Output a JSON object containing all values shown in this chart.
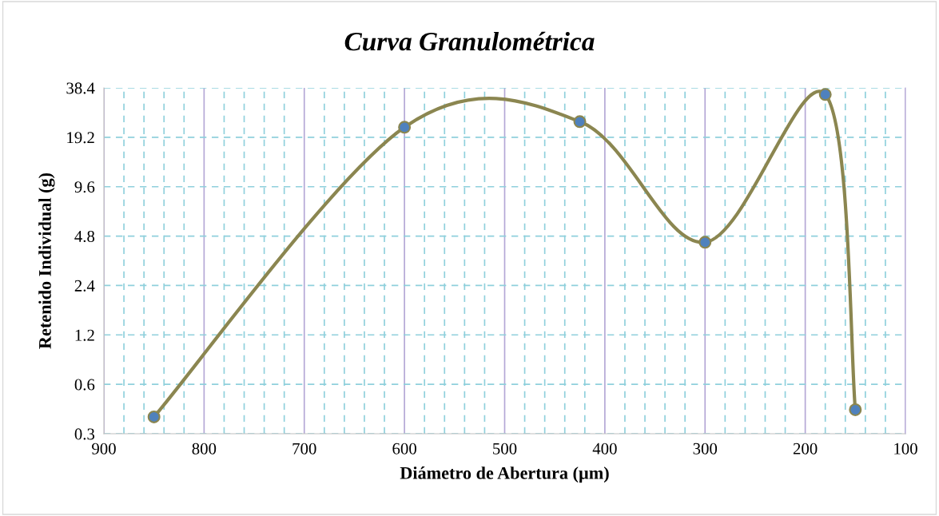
{
  "chart_data": {
    "type": "line",
    "title": "Curva Granulométrica",
    "xlabel": "Diámetro de Abertura (µm)",
    "ylabel": "Retenido Individual (g)",
    "x": [
      850,
      600,
      425,
      300,
      180,
      150
    ],
    "series": [
      {
        "color": "#8b8650",
        "values": [
          0.38,
          22.1,
          23.9,
          4.4,
          35.0,
          0.42
        ]
      }
    ],
    "log": "y",
    "xlim": [
      900,
      100
    ],
    "xticks": [
      900,
      800,
      700,
      600,
      500,
      400,
      300,
      200,
      100
    ],
    "ylim": [
      0.3,
      38.4
    ],
    "yticks": [
      0.3,
      0.6,
      1.2,
      2.4,
      4.8,
      9.6,
      19.2,
      38.4
    ],
    "grid": true,
    "marker": "circle",
    "line_style": "solid",
    "legend": false
  }
}
